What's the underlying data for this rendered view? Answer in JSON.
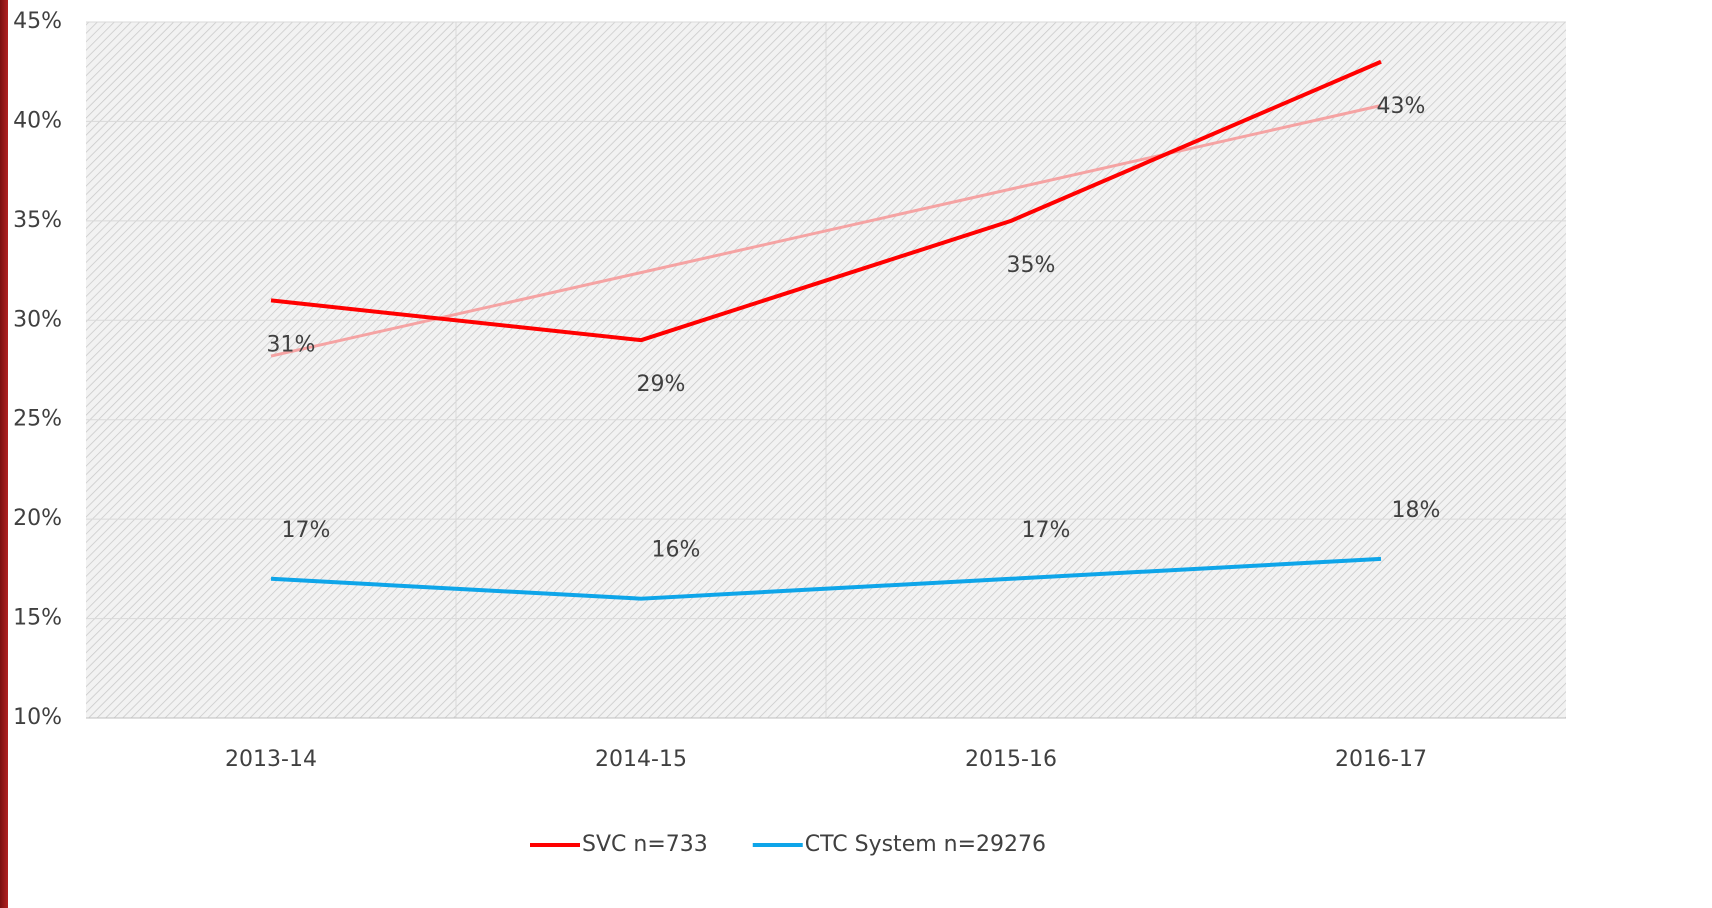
{
  "chart_data": {
    "type": "line",
    "categories": [
      "2013-14",
      "2014-15",
      "2015-16",
      "2016-17"
    ],
    "series": [
      {
        "name": "SVC n=733",
        "color": "#ff0000",
        "values": [
          31,
          29,
          35,
          43
        ],
        "value_labels": [
          "31%",
          "29%",
          "35%",
          "43%"
        ],
        "trendline": true,
        "trendline_color": "#f5a3a3"
      },
      {
        "name": "CTC System n=29276",
        "color": "#0ea5e9",
        "values": [
          17,
          16,
          17,
          18
        ],
        "value_labels": [
          "17%",
          "16%",
          "17%",
          "18%"
        ]
      }
    ],
    "ylim": [
      10,
      45
    ],
    "yticks": [
      {
        "value": 10,
        "label": "10%"
      },
      {
        "value": 15,
        "label": "15%"
      },
      {
        "value": 20,
        "label": "20%"
      },
      {
        "value": 25,
        "label": "25%"
      },
      {
        "value": 30,
        "label": "30%"
      },
      {
        "value": 35,
        "label": "35%"
      },
      {
        "value": 40,
        "label": "40%"
      },
      {
        "value": 45,
        "label": "45%"
      }
    ],
    "grid": true,
    "legend": "bottom"
  }
}
